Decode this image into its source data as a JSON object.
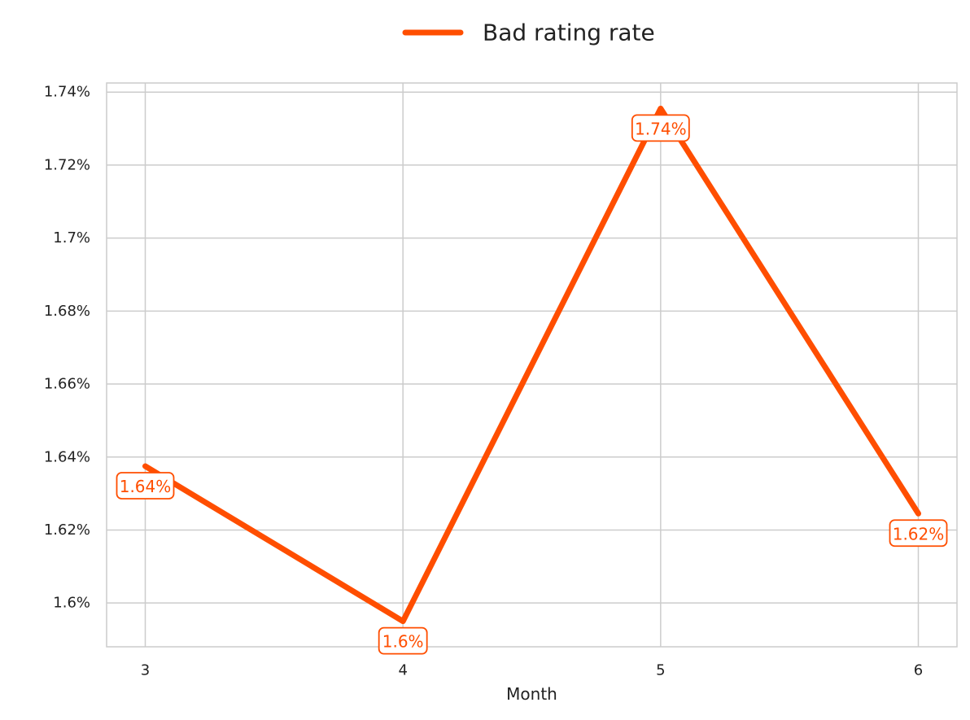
{
  "chart_data": {
    "type": "line",
    "title": "",
    "xlabel": "Month",
    "ylabel": "",
    "x": [
      3,
      4,
      5,
      6
    ],
    "x_tick_labels": [
      "3",
      "4",
      "5",
      "6"
    ],
    "xlim": [
      2.85,
      6.15
    ],
    "ylim": [
      1.588,
      1.7425
    ],
    "y_ticks": [
      1.6,
      1.62,
      1.64,
      1.66,
      1.68,
      1.7,
      1.72,
      1.74
    ],
    "y_tick_labels": [
      "1.6%",
      "1.62%",
      "1.64%",
      "1.66%",
      "1.68%",
      "1.7%",
      "1.72%",
      "1.74%"
    ],
    "grid": true,
    "legend_position": "top-center",
    "series": [
      {
        "name": "Bad rating rate",
        "color": "#FF4E00",
        "values": [
          1.6375,
          1.595,
          1.7355,
          1.6245
        ],
        "data_labels": [
          "1.64%",
          "1.6%",
          "1.74%",
          "1.62%"
        ]
      }
    ]
  }
}
